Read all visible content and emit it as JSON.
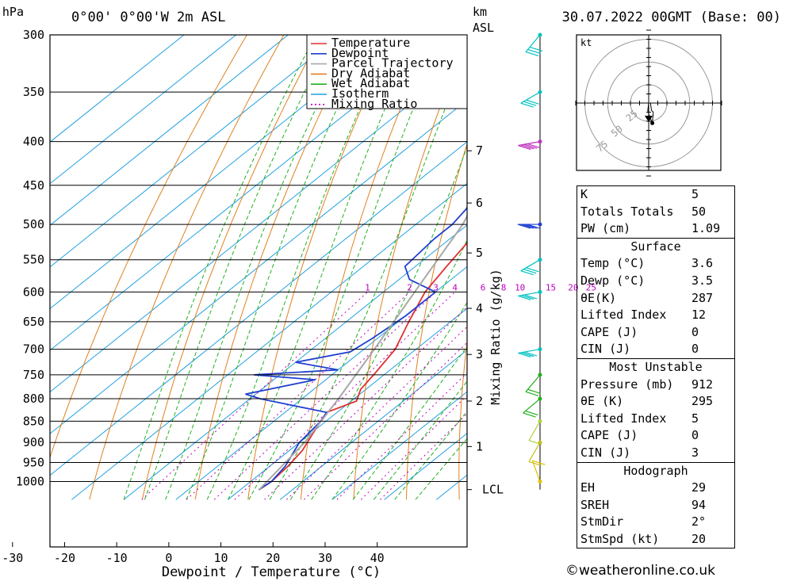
{
  "header": {
    "location": "0°00' 0°00'W 2m ASL",
    "datetime": "30.07.2022 00GMT (Base: 00)",
    "hpa_label": "hPa",
    "km_label": "km",
    "asl_label": "ASL"
  },
  "chart_data": {
    "type": "line",
    "title": "0°00' 0°00'W 2m ASL",
    "xlabel": "Dewpoint / Temperature (°C)",
    "ylabel": "hPa",
    "y2label": "Mixing Ratio (g/kg)",
    "xlim": [
      -40,
      40
    ],
    "ylim": [
      1050,
      300
    ],
    "x_ticks": [
      -30,
      -20,
      -10,
      0,
      10,
      20,
      30,
      40
    ],
    "pressure_levels": [
      300,
      350,
      400,
      450,
      500,
      550,
      600,
      650,
      700,
      750,
      800,
      850,
      900,
      950,
      1000
    ],
    "km_ticks": [
      {
        "label": "7",
        "p": 410
      },
      {
        "label": "6",
        "p": 472
      },
      {
        "label": "5",
        "p": 540
      },
      {
        "label": "4",
        "p": 627
      },
      {
        "label": "3",
        "p": 710
      },
      {
        "label": "2",
        "p": 805
      },
      {
        "label": "1",
        "p": 910
      },
      {
        "label": "LCL",
        "p": 1022
      }
    ],
    "mixing_ratio_labels": [
      "1",
      "2",
      "3",
      "4",
      "6",
      "8",
      "10",
      "15",
      "20",
      "25"
    ],
    "legend": [
      {
        "name": "Temperature",
        "color": "#e03030",
        "dash": false
      },
      {
        "name": "Dewpoint",
        "color": "#2040d0",
        "dash": false
      },
      {
        "name": "Parcel Trajectory",
        "color": "#a8a8a8",
        "dash": false
      },
      {
        "name": "Dry Adiabat",
        "color": "#e08020",
        "dash": false
      },
      {
        "name": "Wet Adiabat",
        "color": "#20b020",
        "dash": false
      },
      {
        "name": "Isotherm",
        "color": "#20a0e0",
        "dash": false
      },
      {
        "name": "Mixing Ratio",
        "color": "#c000c0",
        "dash": true
      }
    ],
    "legend_position": "top-right",
    "series": [
      {
        "name": "Temperature",
        "points": [
          [
            3.6,
            1022
          ],
          [
            4,
            1000
          ],
          [
            3.5,
            960
          ],
          [
            2.5,
            920
          ],
          [
            0.5,
            880
          ],
          [
            -1,
            850
          ],
          [
            -2,
            830
          ],
          [
            1,
            805
          ],
          [
            -1,
            780
          ],
          [
            -2,
            750
          ],
          [
            -4,
            700
          ],
          [
            -8,
            650
          ],
          [
            -12,
            600
          ],
          [
            -14,
            560
          ],
          [
            -16,
            520
          ],
          [
            -19,
            480
          ],
          [
            -23,
            440
          ],
          [
            -27,
            400
          ],
          [
            -30,
            380
          ],
          [
            -32,
            370
          ],
          [
            -33,
            350
          ],
          [
            -35,
            320
          ],
          [
            -36,
            300
          ]
        ]
      },
      {
        "name": "Dewpoint",
        "points": [
          [
            3.5,
            1022
          ],
          [
            4,
            1000
          ],
          [
            3,
            960
          ],
          [
            1,
            920
          ],
          [
            0,
            900
          ],
          [
            -1,
            850
          ],
          [
            -2,
            830
          ],
          [
            -18,
            800
          ],
          [
            -22,
            790
          ],
          [
            -12,
            760
          ],
          [
            -25,
            750
          ],
          [
            -10,
            740
          ],
          [
            -20,
            725
          ],
          [
            -12,
            705
          ],
          [
            -11,
            680
          ],
          [
            -10,
            640
          ],
          [
            -10,
            600
          ],
          [
            -18,
            580
          ],
          [
            -22,
            560
          ],
          [
            -23,
            520
          ],
          [
            -23,
            500
          ],
          [
            -24,
            480
          ],
          [
            -26,
            460
          ],
          [
            -23,
            440
          ],
          [
            -20,
            420
          ],
          [
            -22,
            410
          ],
          [
            -22,
            395
          ],
          [
            -20,
            380
          ],
          [
            -26,
            378
          ],
          [
            -40,
            375
          ]
        ]
      },
      {
        "name": "Parcel Trajectory",
        "points": [
          [
            3.6,
            1022
          ],
          [
            1,
            900
          ],
          [
            -3,
            800
          ],
          [
            -8,
            700
          ],
          [
            -14,
            600
          ],
          [
            -21,
            500
          ],
          [
            -30,
            420
          ],
          [
            -39,
            360
          ],
          [
            -45,
            300
          ]
        ]
      }
    ]
  },
  "hodograph": {
    "unit": "kt",
    "rings": [
      {
        "label": "25",
        "kt": 25
      },
      {
        "label": "50",
        "kt": 50
      },
      {
        "label": "75",
        "kt": 75
      }
    ],
    "trace": [
      [
        0,
        0
      ],
      [
        2,
        0
      ],
      [
        3,
        -8
      ],
      [
        5,
        -10
      ],
      [
        4,
        -22
      ],
      [
        0,
        -12
      ],
      [
        -1,
        -8
      ],
      [
        0,
        0
      ]
    ]
  },
  "winds": [
    {
      "p": 300,
      "dir": 320,
      "spd": 25,
      "color": "#00c0c0"
    },
    {
      "p": 350,
      "dir": 300,
      "spd": 30,
      "color": "#00c0c0"
    },
    {
      "p": 400,
      "dir": 280,
      "spd": 40,
      "color": "#c030c0"
    },
    {
      "p": 500,
      "dir": 270,
      "spd": 35,
      "color": "#2040d0"
    },
    {
      "p": 550,
      "dir": 300,
      "spd": 25,
      "color": "#00c0c0"
    },
    {
      "p": 600,
      "dir": 280,
      "spd": 25,
      "color": "#00c0c0"
    },
    {
      "p": 700,
      "dir": 280,
      "spd": 25,
      "color": "#00c0c0"
    },
    {
      "p": 750,
      "dir": 320,
      "spd": 15,
      "color": "#20b020"
    },
    {
      "p": 800,
      "dir": 310,
      "spd": 15,
      "color": "#20b020"
    },
    {
      "p": 850,
      "dir": 330,
      "spd": 10,
      "color": "#b0d040"
    },
    {
      "p": 900,
      "dir": 330,
      "spd": 10,
      "color": "#c0c020"
    },
    {
      "p": 1000,
      "dir": 200,
      "spd": 10,
      "color": "#e0c000"
    }
  ],
  "stats": {
    "basic": [
      {
        "k": "K",
        "v": "5"
      },
      {
        "k": "Totals Totals",
        "v": "50"
      },
      {
        "k": "PW (cm)",
        "v": "1.09"
      }
    ],
    "surface_title": "Surface",
    "surface": [
      {
        "k": "Temp (°C)",
        "v": "3.6"
      },
      {
        "k": "Dewp (°C)",
        "v": "3.5"
      },
      {
        "k": "θE(K)",
        "v": "287"
      },
      {
        "k": "Lifted Index",
        "v": "12"
      },
      {
        "k": "CAPE (J)",
        "v": "0"
      },
      {
        "k": "CIN (J)",
        "v": "0"
      }
    ],
    "mu_title": "Most Unstable",
    "mu": [
      {
        "k": "Pressure (mb)",
        "v": "912"
      },
      {
        "k": "θE (K)",
        "v": "295"
      },
      {
        "k": "Lifted Index",
        "v": "5"
      },
      {
        "k": "CAPE (J)",
        "v": "0"
      },
      {
        "k": "CIN (J)",
        "v": "3"
      }
    ],
    "hodo_title": "Hodograph",
    "hodo": [
      {
        "k": "EH",
        "v": "29"
      },
      {
        "k": "SREH",
        "v": "94"
      },
      {
        "k": "StmDir",
        "v": "2°"
      },
      {
        "k": "StmSpd (kt)",
        "v": "20"
      }
    ]
  },
  "footer": "©weatheronline.co.uk"
}
